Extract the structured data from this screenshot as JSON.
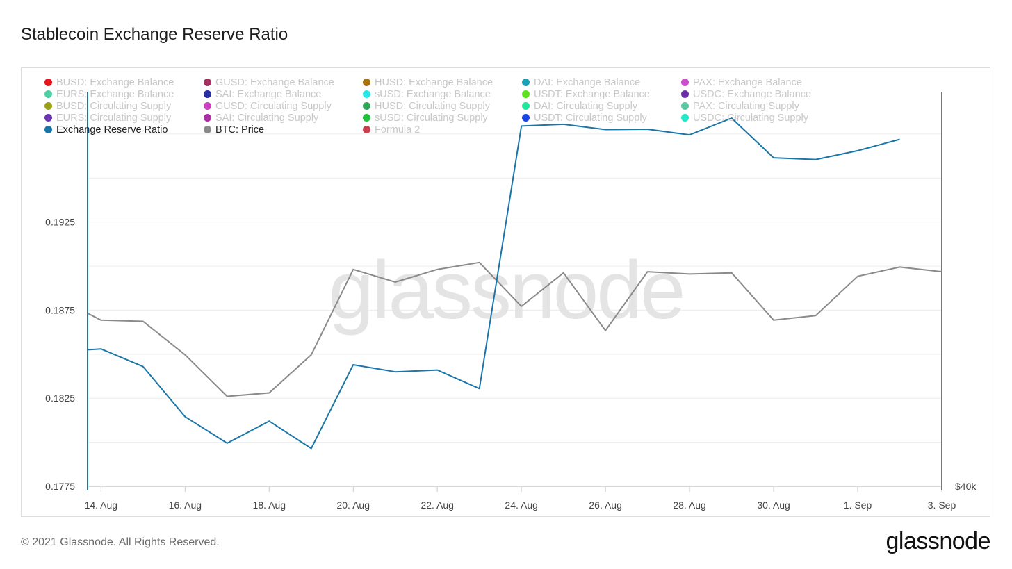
{
  "title": "Stablecoin Exchange Reserve Ratio",
  "footer": "© 2021 Glassnode. All Rights Reserved.",
  "brand": "glassnode",
  "watermark": "glassnode",
  "legend": [
    {
      "label": "BUSD: Exchange Balance",
      "color": "#e8141b",
      "active": false
    },
    {
      "label": "GUSD: Exchange Balance",
      "color": "#a3305e",
      "active": false
    },
    {
      "label": "HUSD: Exchange Balance",
      "color": "#a8700e",
      "active": false
    },
    {
      "label": "DAI: Exchange Balance",
      "color": "#1aa1b6",
      "active": false
    },
    {
      "label": "PAX: Exchange Balance",
      "color": "#c84fc8",
      "active": false
    },
    {
      "label": "EURS: Exchange Balance",
      "color": "#4fd0a6",
      "active": false
    },
    {
      "label": "SAI: Exchange Balance",
      "color": "#2a2fa0",
      "active": false
    },
    {
      "label": "sUSD: Exchange Balance",
      "color": "#27e6e6",
      "active": false
    },
    {
      "label": "USDT: Exchange Balance",
      "color": "#5fe021",
      "active": false
    },
    {
      "label": "USDC: Exchange Balance",
      "color": "#6b2fa8",
      "active": false
    },
    {
      "label": "BUSD: Circulating Supply",
      "color": "#9aa21a",
      "active": false
    },
    {
      "label": "GUSD: Circulating Supply",
      "color": "#cc3fc0",
      "active": false
    },
    {
      "label": "HUSD: Circulating Supply",
      "color": "#2fa659",
      "active": false
    },
    {
      "label": "DAI: Circulating Supply",
      "color": "#1fe89c",
      "active": false
    },
    {
      "label": "PAX: Circulating Supply",
      "color": "#5cc7a2",
      "active": false
    },
    {
      "label": "EURS: Circulating Supply",
      "color": "#6a35b0",
      "active": false
    },
    {
      "label": "SAI: Circulating Supply",
      "color": "#a92ea0",
      "active": false
    },
    {
      "label": "sUSD: Circulating Supply",
      "color": "#1fc23a",
      "active": false
    },
    {
      "label": "USDT: Circulating Supply",
      "color": "#1a45e0",
      "active": false
    },
    {
      "label": "USDC: Circulating Supply",
      "color": "#22e8c8",
      "active": false
    },
    {
      "label": "Exchange Reserve Ratio",
      "color": "#1a76a8",
      "active": true
    },
    {
      "label": "BTC: Price",
      "color": "#8a8a8a",
      "active": true
    },
    {
      "label": "Formula 2",
      "color": "#c84050",
      "active": false
    }
  ],
  "chart_data": {
    "type": "line",
    "title": "Stablecoin Exchange Reserve Ratio",
    "x_tick_labels": [
      "14. Aug",
      "16. Aug",
      "18. Aug",
      "20. Aug",
      "22. Aug",
      "24. Aug",
      "26. Aug",
      "28. Aug",
      "30. Aug",
      "1. Sep",
      "3. Sep"
    ],
    "x_tick_days": [
      1,
      3,
      5,
      7,
      9,
      11,
      13,
      15,
      17,
      19,
      21
    ],
    "x_note": "days counted from 13. Aug 2021 (day 0)",
    "xlim": [
      0.68,
      21
    ],
    "y_left": {
      "ticks": [
        "0.1775",
        "0.1825",
        "0.1875",
        "0.1925",
        "0.1975"
      ],
      "range": [
        0.1775,
        0.1999
      ],
      "visible_tick_labels": [
        "0.1775",
        "0.1825",
        "0.1875",
        "0.1925"
      ]
    },
    "y_right": {
      "label": "$40k"
    },
    "series": [
      {
        "name": "Exchange Reserve Ratio",
        "color": "#1a76a8",
        "axis": "left",
        "x": [
          0.68,
          1,
          2,
          3,
          4,
          5,
          6,
          7,
          8,
          9,
          10,
          11,
          12,
          13,
          14,
          15,
          16,
          17,
          18,
          19,
          20
        ],
        "y": [
          0.18525,
          0.1853,
          0.1843,
          0.18145,
          0.17995,
          0.1812,
          0.17965,
          0.1844,
          0.184,
          0.1841,
          0.18305,
          0.19795,
          0.19805,
          0.19775,
          0.19777,
          0.19745,
          0.1984,
          0.19615,
          0.19605,
          0.19655,
          0.1972
        ]
      },
      {
        "name": "BTC: Price",
        "color": "#8a8a8a",
        "axis": "right",
        "x": [
          0.68,
          1,
          2,
          3,
          4,
          5,
          6,
          7,
          8,
          9,
          10,
          11,
          12,
          13,
          14,
          15,
          16,
          17,
          18,
          19,
          20,
          21
        ],
        "y": [
          46000,
          45700,
          45650,
          44200,
          42400,
          42550,
          44200,
          47900,
          47350,
          47900,
          48200,
          46300,
          47750,
          45250,
          47800,
          47700,
          47750,
          45700,
          45900,
          47600,
          48000,
          47800
        ]
      }
    ],
    "grid": true,
    "legend_position": "top-left",
    "watermark": "glassnode"
  }
}
